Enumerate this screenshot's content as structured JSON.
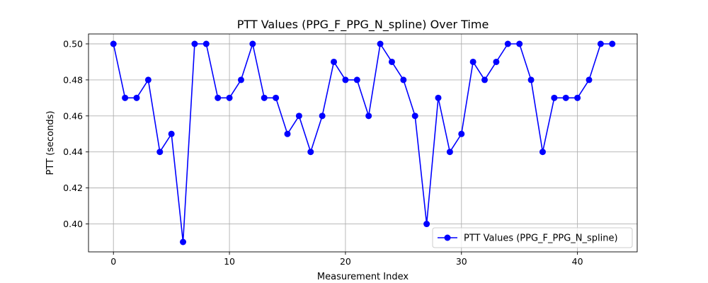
{
  "chart_data": {
    "type": "line",
    "title": "PTT Values (PPG_F_PPG_N_spline) Over Time",
    "xlabel": "Measurement Index",
    "ylabel": "PTT (seconds)",
    "xlim": [
      -2.15,
      45.15
    ],
    "ylim": [
      0.3845,
      0.5055
    ],
    "xticks": [
      0,
      10,
      20,
      30,
      40
    ],
    "yticks": [
      0.4,
      0.42,
      0.44,
      0.46,
      0.48,
      0.5
    ],
    "grid": true,
    "legend_position": "lower-right",
    "series": [
      {
        "name": "PTT Values (PPG_F_PPG_N_spline)",
        "color": "#0000ff",
        "marker": "circle",
        "x": [
          0,
          1,
          2,
          3,
          4,
          5,
          6,
          7,
          8,
          9,
          10,
          11,
          12,
          13,
          14,
          15,
          16,
          17,
          18,
          19,
          20,
          21,
          22,
          23,
          24,
          25,
          26,
          27,
          28,
          29,
          30,
          31,
          32,
          33,
          34,
          35,
          36,
          37,
          38,
          39,
          40,
          41,
          42,
          43
        ],
        "values": [
          0.5,
          0.47,
          0.47,
          0.48,
          0.44,
          0.45,
          0.39,
          0.5,
          0.5,
          0.47,
          0.47,
          0.48,
          0.5,
          0.47,
          0.47,
          0.45,
          0.46,
          0.44,
          0.46,
          0.49,
          0.48,
          0.48,
          0.46,
          0.5,
          0.49,
          0.48,
          0.46,
          0.4,
          0.47,
          0.44,
          0.45,
          0.49,
          0.48,
          0.49,
          0.5,
          0.5,
          0.48,
          0.44,
          0.47,
          0.47,
          0.47,
          0.48,
          0.5,
          0.5
        ]
      }
    ]
  }
}
